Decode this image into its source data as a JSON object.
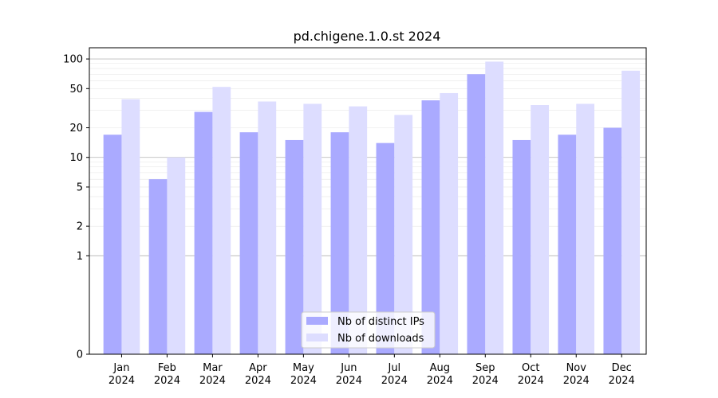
{
  "chart_data": {
    "type": "bar",
    "title": "pd.chigene.1.0.st 2024",
    "xlabel": "",
    "ylabel": "",
    "y_scale": "symlog",
    "y_ticks": [
      0,
      1,
      2,
      5,
      10,
      20,
      50,
      100
    ],
    "ylim": [
      0,
      130
    ],
    "grid": "horizontal",
    "legend_position": "bottom-center",
    "categories": [
      "Jan",
      "Feb",
      "Mar",
      "Apr",
      "May",
      "Jun",
      "Jul",
      "Aug",
      "Sep",
      "Oct",
      "Nov",
      "Dec"
    ],
    "category_sublabels": [
      "2024",
      "2024",
      "2024",
      "2024",
      "2024",
      "2024",
      "2024",
      "2024",
      "2024",
      "2024",
      "2024",
      "2024"
    ],
    "series": [
      {
        "name": "Nb of distinct IPs",
        "color": "#aaaaff",
        "values": [
          17,
          6,
          29,
          18,
          15,
          18,
          14,
          38,
          70,
          15,
          17,
          20
        ]
      },
      {
        "name": "Nb of downloads",
        "color": "#ddddff",
        "values": [
          39,
          10,
          52,
          37,
          35,
          33,
          27,
          45,
          94,
          34,
          35,
          76
        ]
      }
    ]
  }
}
